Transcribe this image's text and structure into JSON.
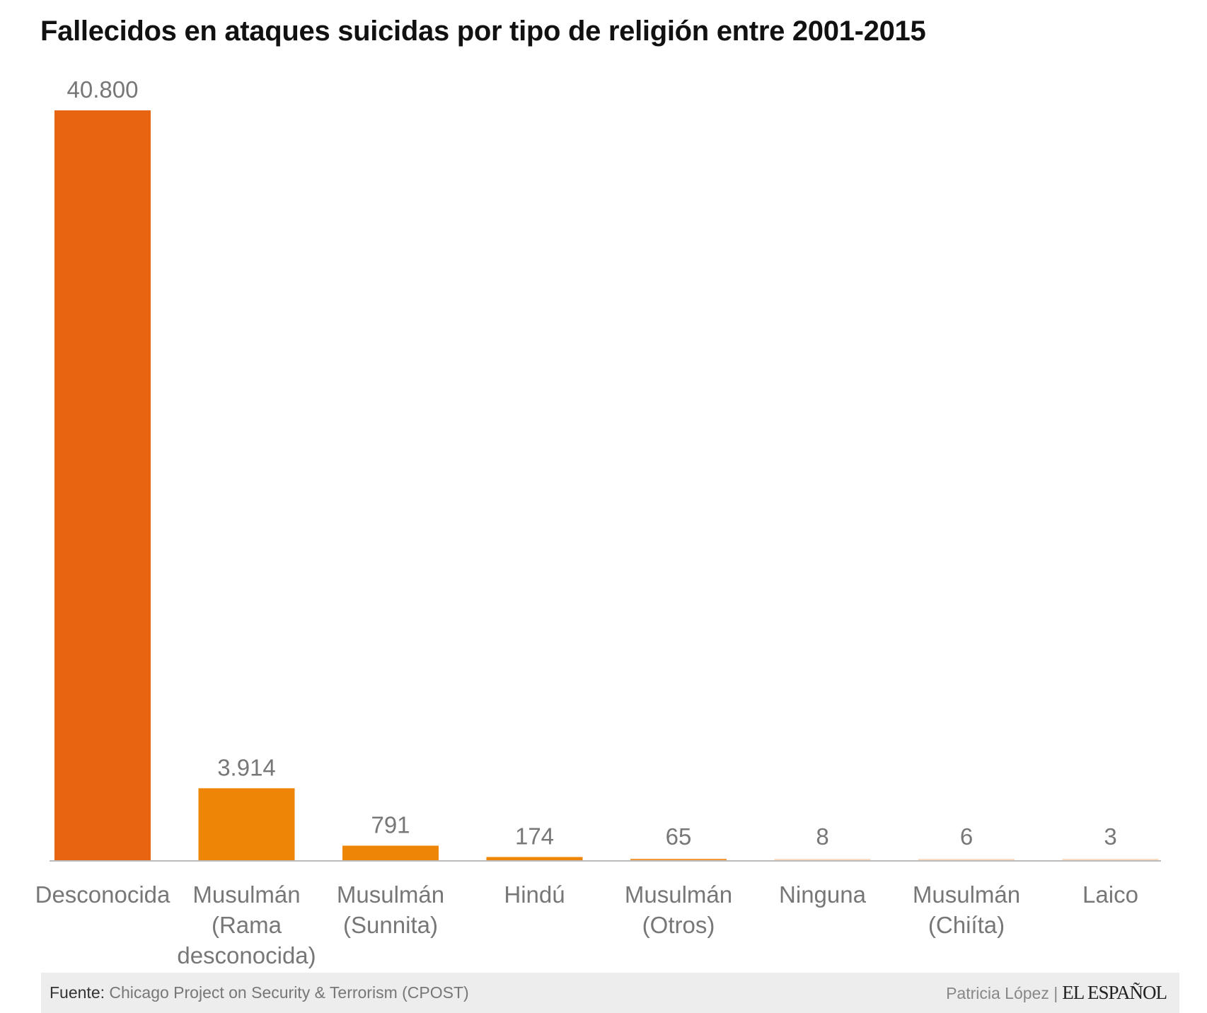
{
  "chart_data": {
    "type": "bar",
    "title": "Fallecidos en ataques suicidas por tipo de religión entre 2001-2015",
    "categories": [
      "Desconocida",
      "Musulmán (Rama desconocida)",
      "Musulmán (Sunnita)",
      "Hindú",
      "Musulmán (Otros)",
      "Ninguna",
      "Musulmán (Chiíta)",
      "Laico"
    ],
    "category_lines": [
      [
        "Desconocida"
      ],
      [
        "Musulmán",
        "(Rama",
        "desconocida)"
      ],
      [
        "Musulmán",
        "(Sunnita)"
      ],
      [
        "Hindú"
      ],
      [
        "Musulmán",
        "(Otros)"
      ],
      [
        "Ninguna"
      ],
      [
        "Musulmán",
        "(Chiíta)"
      ],
      [
        "Laico"
      ]
    ],
    "values": [
      40800,
      3914,
      791,
      174,
      65,
      8,
      6,
      3
    ],
    "value_labels": [
      "40.800",
      "3.914",
      "791",
      "174",
      "65",
      "8",
      "6",
      "3"
    ],
    "bar_colors": [
      "#e86411",
      "#ee8506",
      "#ee8506",
      "#ee8506",
      "#f29a3a",
      "#f9dcc2",
      "#f9dcc2",
      "#f9dcc2"
    ],
    "ylim": [
      0,
      40800
    ],
    "grid": false,
    "xlabel": "",
    "ylabel": ""
  },
  "footer": {
    "source_label": "Fuente:",
    "source_value": "Chicago Project on Security & Terrorism (CPOST)",
    "author": "Patricia López |",
    "logo": "EL ESPAÑOL"
  }
}
